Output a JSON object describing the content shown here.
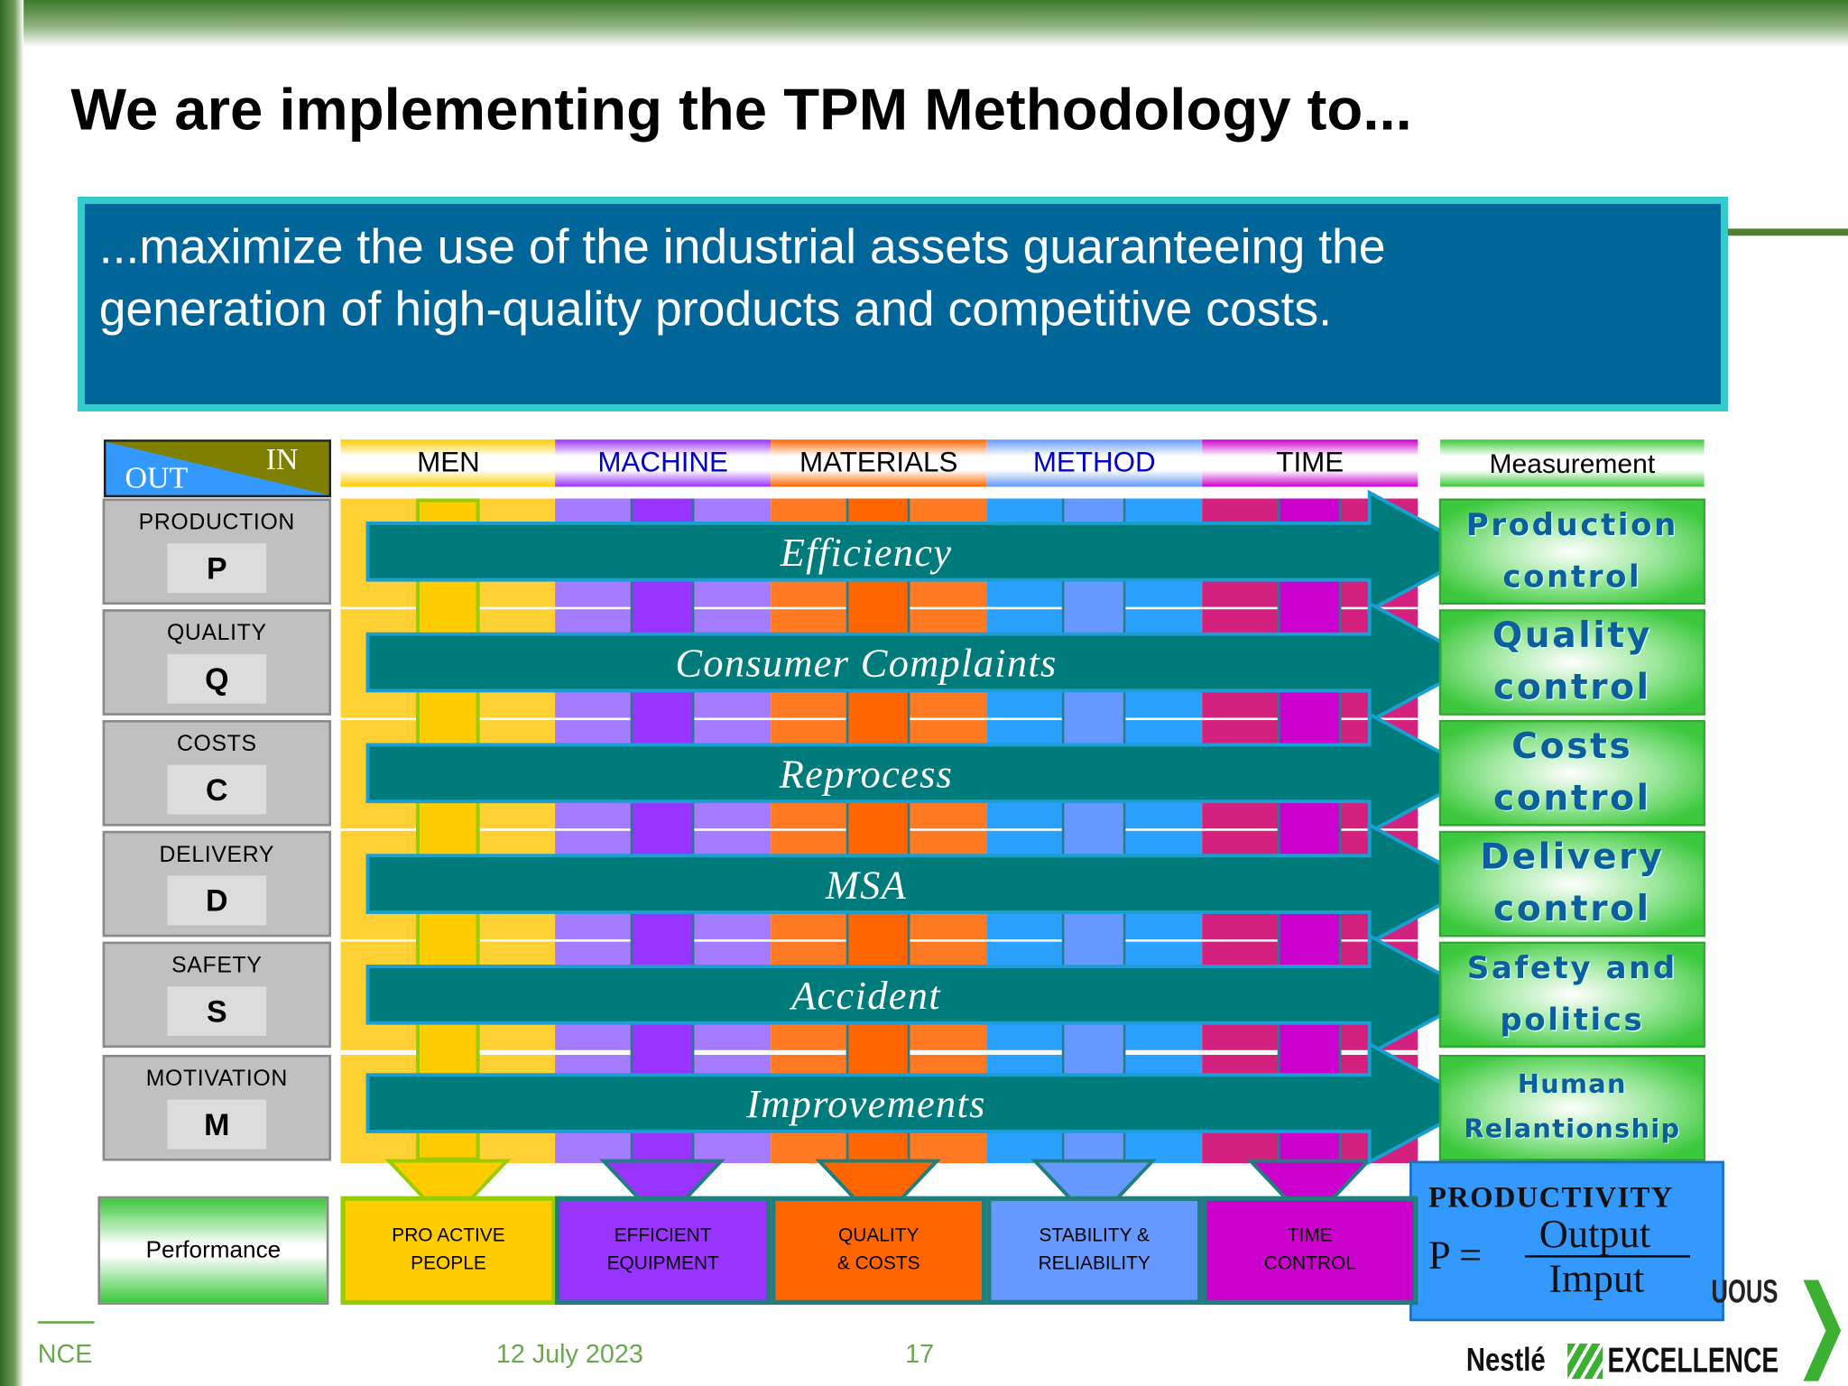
{
  "title": "We are implementing the TPM Methodology to...",
  "banner": {
    "line1": "...maximize the use of the industrial assets guaranteeing the",
    "line2": "generation of high-quality products  and competitive costs."
  },
  "corner": {
    "in": "IN",
    "out": "OUT"
  },
  "columns": [
    {
      "label": "MEN",
      "light": "#FFD033",
      "dark": "#FFCC00",
      "text": "#000000",
      "bottom": [
        "PRO ACTIVE",
        "PEOPLE"
      ]
    },
    {
      "label": "MACHINE",
      "light": "#A57BFF",
      "dark": "#9933FF",
      "text": "#0000CC",
      "bottom": [
        "EFFICIENT",
        "EQUIPMENT"
      ]
    },
    {
      "label": "MATERIALS",
      "light": "#FF7A22",
      "dark": "#FF6600",
      "text": "#000000",
      "bottom": [
        "QUALITY",
        "& COSTS"
      ]
    },
    {
      "label": "METHOD",
      "light": "#2AA0FF",
      "dark": "#6699FF",
      "text": "#0000CC",
      "bottom": [
        "STABILITY &",
        "RELIABILITY"
      ]
    },
    {
      "label": "TIME",
      "light": "#D4207F",
      "dark": "#CC00CC",
      "text": "#000000",
      "bottom": [
        "TIME",
        "CONTROL"
      ]
    }
  ],
  "measurement_header": "Measurement",
  "rows": [
    {
      "label": "PRODUCTION",
      "key": "P",
      "arrow": "Efficiency",
      "measure": [
        "Production",
        "control"
      ]
    },
    {
      "label": "QUALITY",
      "key": "Q",
      "arrow": "Consumer Complaints",
      "measure": [
        "Quality",
        "control"
      ]
    },
    {
      "label": "COSTS",
      "key": "C",
      "arrow": "Reprocess",
      "measure": [
        "Costs",
        "control"
      ]
    },
    {
      "label": "DELIVERY",
      "key": "D",
      "arrow": "MSA",
      "measure": [
        "Delivery",
        "control"
      ]
    },
    {
      "label": "SAFETY",
      "key": "S",
      "arrow": "Accident",
      "measure": [
        "Safety and",
        "politics"
      ]
    },
    {
      "label": "MOTIVATION",
      "key": "M",
      "arrow": "Improvements",
      "measure": [
        "Human",
        "Relantionship"
      ]
    }
  ],
  "performance": "Performance",
  "productivity": {
    "title": "PRODUCTIVITY",
    "lhs": "P =",
    "numerator": "Output",
    "denominator": "Imput"
  },
  "footer": {
    "left": "NCE",
    "date": "12 July 2023",
    "page": "17"
  },
  "logo": {
    "top": "UOUS",
    "brand": "Nestlé",
    "word": "EXCELLENCE"
  },
  "colors": {
    "arrow": "#007B7B",
    "arrow_outline": "#1A9FD0",
    "banner": "#006699",
    "banner_border": "#33CCCC"
  }
}
